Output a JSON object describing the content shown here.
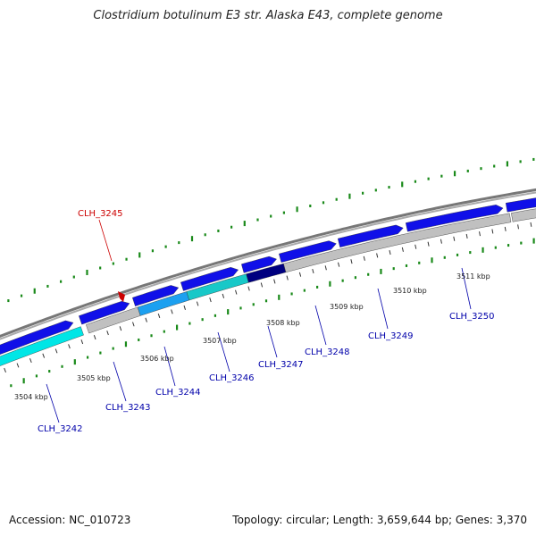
{
  "header": {
    "title": "Clostridium botulinum E3 str. Alaska E43, complete genome"
  },
  "footer": {
    "accession_label": "Accession:",
    "accession": "NC_010723",
    "topology_label": "Topology:",
    "topology": "circular",
    "length_label": "Length:",
    "length": "3,659,644 bp",
    "genes_label": "Genes:",
    "genes": "3,370"
  },
  "colors": {
    "backbone": "#8a8a8a",
    "forward_gene": "#1010e8",
    "gray_gene": "#c0c0c0",
    "cyan_gene": "#00e6e6",
    "lightblue_gene": "#1ca0f0",
    "teal_gene": "#18c8c8",
    "navy_gene": "#000080",
    "gc_dots": "#1a8a1a",
    "highlight_label": "#cc0000",
    "gene_label": "#0000aa"
  },
  "scale_ticks": [
    {
      "label": "3504 kbp"
    },
    {
      "label": "3505 kbp"
    },
    {
      "label": "3506 kbp"
    },
    {
      "label": "3507 kbp"
    },
    {
      "label": "3508 kbp"
    },
    {
      "label": "3509 kbp"
    },
    {
      "label": "3510 kbp"
    },
    {
      "label": "3511 kbp"
    }
  ],
  "gene_labels": [
    {
      "label": "CLH_3242",
      "highlight": false
    },
    {
      "label": "CLH_3243",
      "highlight": false
    },
    {
      "label": "CLH_3244",
      "highlight": false
    },
    {
      "label": "CLH_3245",
      "highlight": true
    },
    {
      "label": "CLH_3246",
      "highlight": false
    },
    {
      "label": "CLH_3247",
      "highlight": false
    },
    {
      "label": "CLH_3248",
      "highlight": false
    },
    {
      "label": "CLH_3249",
      "highlight": false
    },
    {
      "label": "CLH_3250",
      "highlight": false
    }
  ]
}
